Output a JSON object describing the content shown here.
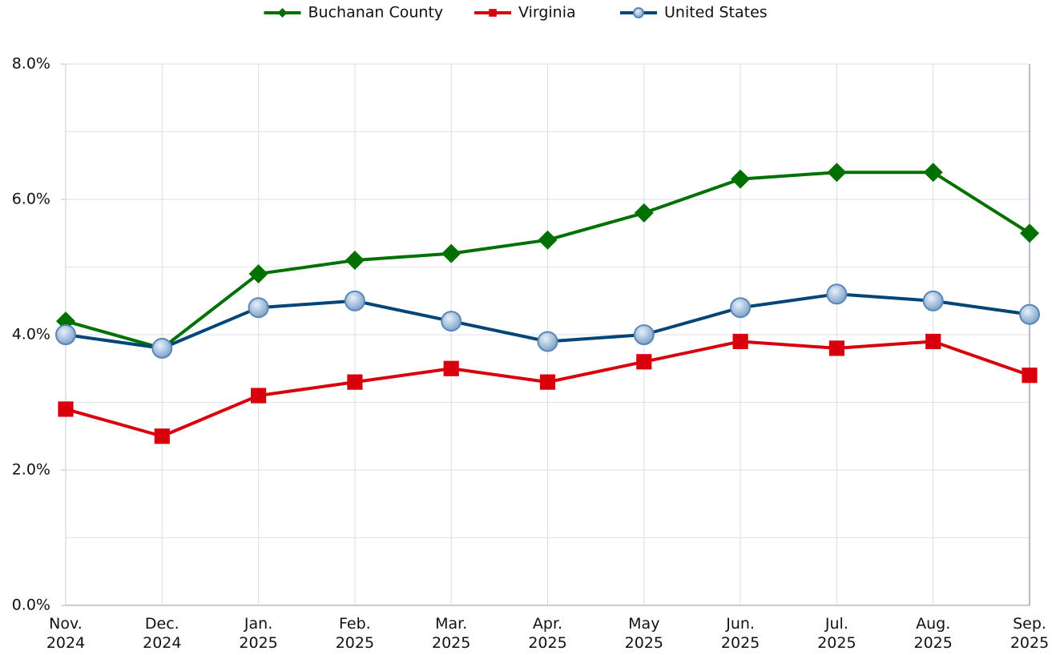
{
  "chart_data": {
    "type": "line",
    "categories": [
      "Nov. 2024",
      "Dec. 2024",
      "Jan. 2025",
      "Feb. 2025",
      "Mar. 2025",
      "Apr. 2025",
      "May 2025",
      "Jun. 2025",
      "Jul. 2025",
      "Aug. 2025",
      "Sep. 2025"
    ],
    "series": [
      {
        "name": "Buchanan County",
        "color": "#007000",
        "marker": "diamond",
        "values": [
          4.2,
          3.8,
          4.9,
          5.1,
          5.2,
          5.4,
          5.8,
          6.3,
          6.4,
          6.4,
          5.5
        ]
      },
      {
        "name": "Virginia",
        "color": "#d9000d",
        "marker": "square",
        "values": [
          2.9,
          2.5,
          3.1,
          3.3,
          3.5,
          3.3,
          3.6,
          3.9,
          3.8,
          3.9,
          3.4
        ]
      },
      {
        "name": "United States",
        "color": "#004578",
        "marker": "circle",
        "values": [
          4.0,
          3.8,
          4.4,
          4.5,
          4.2,
          3.9,
          4.0,
          4.4,
          4.6,
          4.5,
          4.3
        ]
      }
    ],
    "ylim": [
      0,
      8
    ],
    "yticks": [
      {
        "value": 0,
        "label": "0.0%"
      },
      {
        "value": 2,
        "label": "2.0%"
      },
      {
        "value": 4,
        "label": "4.0%"
      },
      {
        "value": 6,
        "label": "6.0%"
      },
      {
        "value": 8,
        "label": "8.0%"
      }
    ],
    "minor_yticks": [
      1,
      3,
      5,
      7
    ],
    "grid": true,
    "legend": "top"
  }
}
